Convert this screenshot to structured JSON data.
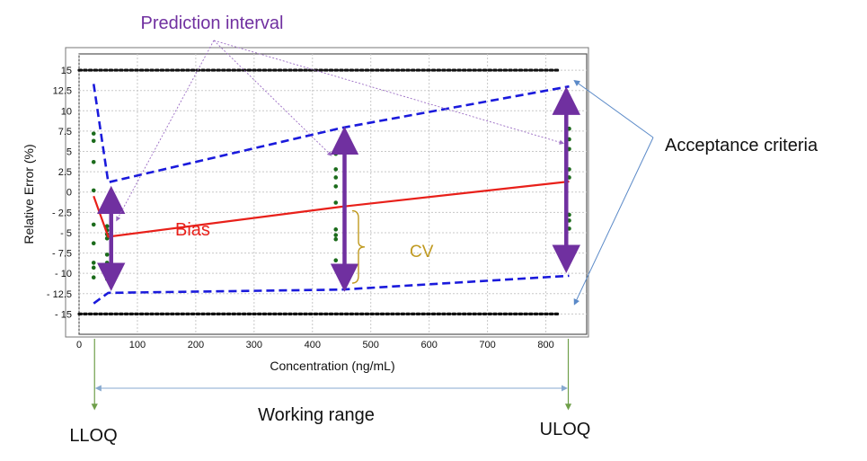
{
  "chart_data": {
    "type": "line",
    "title": "",
    "xlabel": "Concentration (ng/mL)",
    "ylabel": "Relative Error (%)",
    "xlim": [
      0,
      870
    ],
    "ylim": [
      -17.5,
      17
    ],
    "x_ticks": [
      0,
      100,
      200,
      300,
      400,
      500,
      600,
      700,
      800
    ],
    "y_ticks": [
      15,
      12.5,
      10,
      7.5,
      5,
      2.5,
      0,
      -2.5,
      -5,
      -7.5,
      -10,
      -12.5,
      -15
    ],
    "x_tick_labels": [
      "0",
      "100",
      "200",
      "300",
      "400",
      "500",
      "600",
      "700",
      "800"
    ],
    "y_tick_labels": [
      "15",
      "12.5",
      "10",
      "7.5",
      "5",
      "2.5",
      "0",
      "- 2.5",
      "- 5",
      "- 7.5",
      "- 10",
      "- 12.5",
      "- 15"
    ],
    "grid": true,
    "series": [
      {
        "role": "upper_acceptance_limit",
        "style": "dotted",
        "color": "#111111",
        "x": [
          0,
          825
        ],
        "y": [
          15,
          15
        ]
      },
      {
        "role": "lower_acceptance_limit",
        "style": "dotted",
        "color": "#111111",
        "x": [
          0,
          825
        ],
        "y": [
          -15,
          -15
        ]
      },
      {
        "role": "bias",
        "style": "solid",
        "color": "#e8201a",
        "x": [
          25,
          50,
          450,
          840
        ],
        "y": [
          -0.5,
          -5.5,
          -1.8,
          1.3
        ]
      },
      {
        "role": "upper_prediction_limit",
        "style": "dashed",
        "color": "#1a1adc",
        "x": [
          25,
          50,
          450,
          840
        ],
        "y": [
          13.3,
          1.2,
          7.9,
          13
        ]
      },
      {
        "role": "lower_prediction_limit",
        "style": "dashed",
        "color": "#1a1adc",
        "x": [
          25,
          50,
          450,
          840
        ],
        "y": [
          -13.7,
          -12.4,
          -12,
          -10.3
        ]
      }
    ],
    "points": {
      "color": "#1b6b1b",
      "x": [
        25,
        25,
        25,
        25,
        25,
        25,
        25,
        25,
        25,
        48,
        48,
        48,
        48,
        48,
        48,
        48,
        48,
        440,
        440,
        440,
        440,
        440,
        440,
        440,
        440,
        440,
        840,
        840,
        840,
        840,
        840,
        840,
        840,
        840
      ],
      "y": [
        7.2,
        6.3,
        3.7,
        0.2,
        -4,
        -6.3,
        -8.7,
        -9.3,
        -10.5,
        -4.2,
        -4.7,
        -5.2,
        -5.7,
        -7.7,
        -8.7,
        -9.7,
        -10.7,
        4.7,
        2.8,
        1.8,
        0.7,
        -1.3,
        -4.6,
        -5.3,
        -5.8,
        -8.4,
        7.8,
        6.5,
        5.3,
        2.8,
        1.8,
        -2.8,
        -3.5,
        -4.5
      ]
    },
    "intervals": {
      "color": "#7030a0",
      "x": [
        55,
        455,
        835
      ],
      "y_top": [
        0.3,
        7.6,
        12.5
      ],
      "y_bottom": [
        -11.7,
        -11.8,
        -9.5
      ]
    },
    "cv_bracket": {
      "x": 465,
      "y_top": -2.3,
      "y_bottom": -11.2
    }
  },
  "annotations": {
    "prediction_interval": "Prediction interval",
    "acceptance_criteria": "Acceptance criteria",
    "bias": "Bias",
    "cv": "CV",
    "working_range": "Working range",
    "lloq": "LLOQ",
    "uloq": "ULOQ"
  },
  "colors": {
    "prediction_interval": "#7030a0",
    "bias": "#e8201a",
    "cv": "#c09a20",
    "acceptance_arrow": "#5b8ac8",
    "range_arrow": "#6f9f4a",
    "working_range_arrow": "#87a9cf"
  }
}
